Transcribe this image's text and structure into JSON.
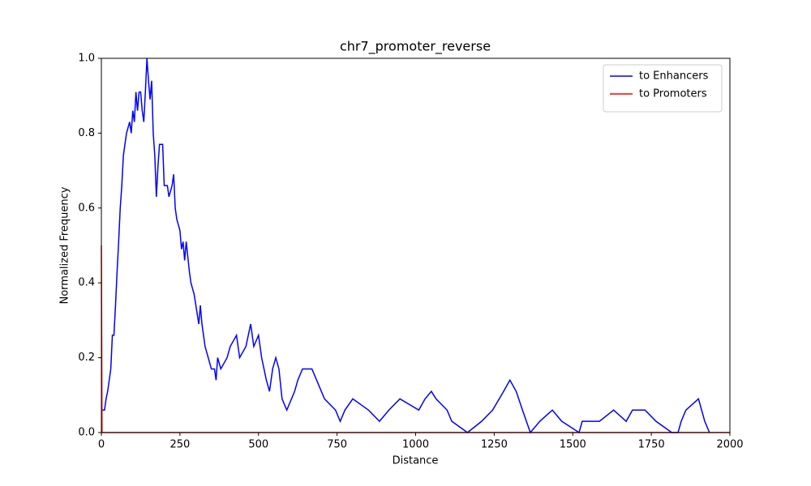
{
  "chart_data": {
    "type": "line",
    "title": "chr7_promoter_reverse",
    "x_label": "Distance",
    "y_label": "Normalized Frequency",
    "xlim": [
      0,
      2000
    ],
    "xticks": [
      0,
      250,
      500,
      750,
      1000,
      1250,
      1500,
      1750,
      2000
    ],
    "ylim": [
      0,
      1
    ],
    "yticks": [
      {
        "value": 0,
        "label": "0.0"
      },
      {
        "value": 0.2,
        "label": "0.2"
      },
      {
        "value": 0.4,
        "label": "0.4"
      },
      {
        "value": 0.6,
        "label": "0.6"
      },
      {
        "value": 0.8,
        "label": "0.8"
      },
      {
        "value": 1,
        "label": "1.0"
      }
    ],
    "legend": "upper right",
    "grid": false,
    "series": [
      {
        "name": "to Enhancers",
        "color": "#0000ff",
        "x": [
          0,
          10,
          15,
          20,
          25,
          30,
          35,
          40,
          45,
          50,
          55,
          60,
          65,
          70,
          75,
          80,
          90,
          95,
          100,
          105,
          110,
          115,
          120,
          125,
          130,
          135,
          140,
          145,
          150,
          155,
          160,
          165,
          170,
          175,
          180,
          185,
          195,
          200,
          210,
          215,
          225,
          230,
          235,
          240,
          250,
          255,
          260,
          265,
          270,
          280,
          285,
          295,
          310,
          315,
          320,
          330,
          340,
          350,
          360,
          365,
          370,
          380,
          400,
          410,
          430,
          440,
          460,
          475,
          485,
          500,
          510,
          525,
          535,
          545,
          555,
          565,
          575,
          590,
          615,
          625,
          640,
          670,
          685,
          700,
          710,
          745,
          760,
          775,
          800,
          850,
          885,
          915,
          950,
          1010,
          1030,
          1050,
          1065,
          1100,
          1115,
          1165,
          1210,
          1245,
          1280,
          1300,
          1320,
          1340,
          1365,
          1395,
          1435,
          1465,
          1520,
          1530,
          1585,
          1630,
          1670,
          1690,
          1730,
          1765,
          1815,
          1835,
          1845,
          1860,
          1900,
          1920,
          1935
        ],
        "values": [
          0.06,
          0.06,
          0.09,
          0.11,
          0.14,
          0.17,
          0.26,
          0.26,
          0.34,
          0.43,
          0.51,
          0.6,
          0.66,
          0.74,
          0.77,
          0.8,
          0.83,
          0.8,
          0.86,
          0.83,
          0.91,
          0.86,
          0.91,
          0.91,
          0.86,
          0.83,
          0.91,
          1.0,
          0.94,
          0.89,
          0.94,
          0.8,
          0.74,
          0.63,
          0.71,
          0.77,
          0.77,
          0.66,
          0.66,
          0.63,
          0.66,
          0.69,
          0.6,
          0.57,
          0.54,
          0.49,
          0.51,
          0.46,
          0.51,
          0.43,
          0.4,
          0.37,
          0.29,
          0.34,
          0.29,
          0.23,
          0.2,
          0.17,
          0.17,
          0.14,
          0.2,
          0.17,
          0.2,
          0.23,
          0.26,
          0.2,
          0.23,
          0.29,
          0.23,
          0.26,
          0.2,
          0.14,
          0.11,
          0.17,
          0.2,
          0.17,
          0.09,
          0.06,
          0.11,
          0.14,
          0.17,
          0.17,
          0.14,
          0.11,
          0.09,
          0.06,
          0.03,
          0.06,
          0.09,
          0.06,
          0.03,
          0.06,
          0.09,
          0.06,
          0.09,
          0.11,
          0.09,
          0.06,
          0.03,
          0,
          0.03,
          0.06,
          0.11,
          0.14,
          0.11,
          0.06,
          0,
          0.03,
          0.06,
          0.03,
          0,
          0.03,
          0.03,
          0.06,
          0.03,
          0.06,
          0.06,
          0.03,
          0,
          0,
          0.03,
          0.06,
          0.09,
          0.03,
          0
        ]
      },
      {
        "name": "to Promoters",
        "color": "#ff0000",
        "x": [
          0,
          2,
          2000
        ],
        "values": [
          0.5,
          0,
          0
        ]
      }
    ]
  }
}
